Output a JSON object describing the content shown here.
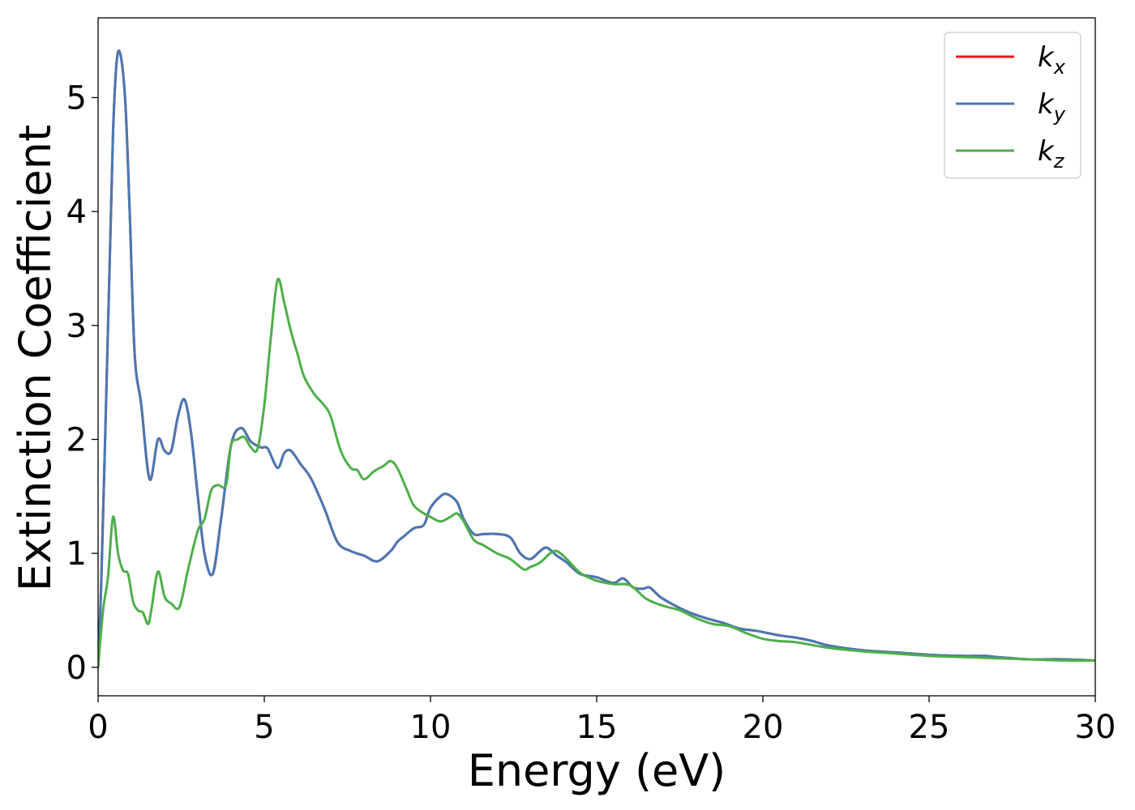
{
  "chart_data": {
    "type": "line",
    "title": "",
    "xlabel": "Energy (eV)",
    "ylabel": "Extinction Coefficient",
    "xlim": [
      0,
      30
    ],
    "ylim": [
      -0.25,
      5.7
    ],
    "xticks": [
      0,
      5,
      10,
      15,
      20,
      25,
      30
    ],
    "yticks": [
      0,
      1,
      2,
      3,
      4,
      5
    ],
    "grid": false,
    "legend_position": "top-right",
    "series": [
      {
        "name": "k_x",
        "label_base": "k",
        "label_sub": "x",
        "color": "#e41a1c",
        "x": [
          0,
          0.1,
          0.3,
          0.45,
          0.6,
          0.8,
          0.95,
          1.1,
          1.3,
          1.55,
          1.8,
          2.0,
          2.2,
          2.4,
          2.6,
          2.8,
          3.0,
          3.2,
          3.45,
          3.7,
          4.0,
          4.3,
          4.6,
          4.9,
          5.1,
          5.4,
          5.6,
          5.8,
          6.1,
          6.4,
          6.8,
          7.2,
          7.6,
          8.0,
          8.4,
          8.8,
          9.0,
          9.2,
          9.5,
          9.8,
          10.0,
          10.3,
          10.5,
          10.8,
          11.0,
          11.3,
          11.6,
          12.0,
          12.4,
          12.7,
          13.0,
          13.3,
          13.5,
          13.8,
          14.1,
          14.5,
          15.0,
          15.5,
          15.8,
          16.1,
          16.4,
          16.6,
          16.9,
          17.3,
          17.8,
          18.3,
          18.8,
          19.3,
          19.8,
          20.5,
          21.0,
          21.5,
          22.0,
          23.0,
          24.0,
          25.0,
          26.0,
          26.7,
          27.0,
          27.5,
          28.0,
          29.0,
          30.0
        ],
        "y": [
          0.0,
          0.8,
          3.0,
          4.7,
          5.4,
          5.05,
          4.0,
          2.75,
          2.3,
          1.65,
          2.0,
          1.9,
          1.9,
          2.2,
          2.35,
          2.05,
          1.5,
          1.0,
          0.82,
          1.3,
          1.95,
          2.1,
          1.98,
          1.93,
          1.92,
          1.75,
          1.88,
          1.9,
          1.78,
          1.66,
          1.4,
          1.1,
          1.02,
          0.98,
          0.93,
          1.02,
          1.1,
          1.15,
          1.22,
          1.25,
          1.4,
          1.5,
          1.52,
          1.45,
          1.3,
          1.17,
          1.17,
          1.17,
          1.14,
          1.0,
          0.95,
          1.02,
          1.05,
          0.98,
          0.92,
          0.82,
          0.79,
          0.74,
          0.78,
          0.7,
          0.69,
          0.7,
          0.62,
          0.55,
          0.48,
          0.43,
          0.39,
          0.34,
          0.32,
          0.28,
          0.26,
          0.23,
          0.19,
          0.15,
          0.13,
          0.11,
          0.1,
          0.1,
          0.09,
          0.08,
          0.07,
          0.07,
          0.06
        ]
      },
      {
        "name": "k_y",
        "label_base": "k",
        "label_sub": "y",
        "color": "#4878b4",
        "x": [
          0,
          0.1,
          0.3,
          0.45,
          0.6,
          0.8,
          0.95,
          1.1,
          1.3,
          1.55,
          1.8,
          2.0,
          2.2,
          2.4,
          2.6,
          2.8,
          3.0,
          3.2,
          3.45,
          3.7,
          4.0,
          4.3,
          4.6,
          4.9,
          5.1,
          5.4,
          5.6,
          5.8,
          6.1,
          6.4,
          6.8,
          7.2,
          7.6,
          8.0,
          8.4,
          8.8,
          9.0,
          9.2,
          9.5,
          9.8,
          10.0,
          10.3,
          10.5,
          10.8,
          11.0,
          11.3,
          11.6,
          12.0,
          12.4,
          12.7,
          13.0,
          13.3,
          13.5,
          13.8,
          14.1,
          14.5,
          15.0,
          15.5,
          15.8,
          16.1,
          16.4,
          16.6,
          16.9,
          17.3,
          17.8,
          18.3,
          18.8,
          19.3,
          19.8,
          20.5,
          21.0,
          21.5,
          22.0,
          23.0,
          24.0,
          25.0,
          26.0,
          26.7,
          27.0,
          27.5,
          28.0,
          29.0,
          30.0
        ],
        "y": [
          0.0,
          0.8,
          3.0,
          4.7,
          5.4,
          5.05,
          4.0,
          2.75,
          2.3,
          1.65,
          2.0,
          1.9,
          1.9,
          2.2,
          2.35,
          2.05,
          1.5,
          1.0,
          0.82,
          1.3,
          1.95,
          2.1,
          1.98,
          1.93,
          1.92,
          1.75,
          1.88,
          1.9,
          1.78,
          1.66,
          1.4,
          1.1,
          1.02,
          0.98,
          0.93,
          1.02,
          1.1,
          1.15,
          1.22,
          1.25,
          1.4,
          1.5,
          1.52,
          1.45,
          1.3,
          1.17,
          1.17,
          1.17,
          1.14,
          1.0,
          0.95,
          1.02,
          1.05,
          0.98,
          0.92,
          0.82,
          0.79,
          0.74,
          0.78,
          0.7,
          0.69,
          0.7,
          0.62,
          0.55,
          0.48,
          0.43,
          0.39,
          0.34,
          0.32,
          0.28,
          0.26,
          0.23,
          0.19,
          0.15,
          0.13,
          0.11,
          0.1,
          0.1,
          0.09,
          0.08,
          0.07,
          0.07,
          0.06
        ]
      },
      {
        "name": "k_z",
        "label_base": "k",
        "label_sub": "z",
        "color": "#4daf4a",
        "x": [
          0,
          0.15,
          0.3,
          0.45,
          0.6,
          0.75,
          0.9,
          1.05,
          1.2,
          1.35,
          1.5,
          1.6,
          1.8,
          2.0,
          2.2,
          2.45,
          2.7,
          3.0,
          3.2,
          3.4,
          3.6,
          3.85,
          4.0,
          4.2,
          4.4,
          4.6,
          4.8,
          5.0,
          5.2,
          5.4,
          5.6,
          5.8,
          6.0,
          6.2,
          6.5,
          6.8,
          7.0,
          7.3,
          7.6,
          7.8,
          8.0,
          8.3,
          8.6,
          8.8,
          9.0,
          9.3,
          9.5,
          9.8,
          10.0,
          10.3,
          10.6,
          10.8,
          11.0,
          11.3,
          11.6,
          12.0,
          12.4,
          12.8,
          13.0,
          13.3,
          13.6,
          13.8,
          14.1,
          14.5,
          15.0,
          15.5,
          16.0,
          16.5,
          17.0,
          17.5,
          18.0,
          18.5,
          19.0,
          19.5,
          20.0,
          20.5,
          21.0,
          22.0,
          23.0,
          24.0,
          25.0,
          26.0,
          27.0,
          28.0,
          29.0,
          30.0
        ],
        "y": [
          0.0,
          0.5,
          0.8,
          1.32,
          1.0,
          0.85,
          0.82,
          0.58,
          0.5,
          0.48,
          0.38,
          0.5,
          0.84,
          0.62,
          0.56,
          0.53,
          0.85,
          1.2,
          1.3,
          1.55,
          1.6,
          1.6,
          1.95,
          2.0,
          2.02,
          1.93,
          1.92,
          2.3,
          2.9,
          3.4,
          3.2,
          2.95,
          2.75,
          2.55,
          2.4,
          2.3,
          2.2,
          1.9,
          1.75,
          1.73,
          1.65,
          1.72,
          1.77,
          1.81,
          1.75,
          1.55,
          1.42,
          1.35,
          1.32,
          1.28,
          1.32,
          1.35,
          1.28,
          1.12,
          1.07,
          1.0,
          0.95,
          0.86,
          0.88,
          0.92,
          1.0,
          1.02,
          0.95,
          0.83,
          0.76,
          0.73,
          0.72,
          0.6,
          0.54,
          0.5,
          0.43,
          0.38,
          0.36,
          0.3,
          0.25,
          0.23,
          0.22,
          0.17,
          0.14,
          0.12,
          0.1,
          0.09,
          0.08,
          0.07,
          0.06,
          0.06
        ]
      }
    ]
  }
}
